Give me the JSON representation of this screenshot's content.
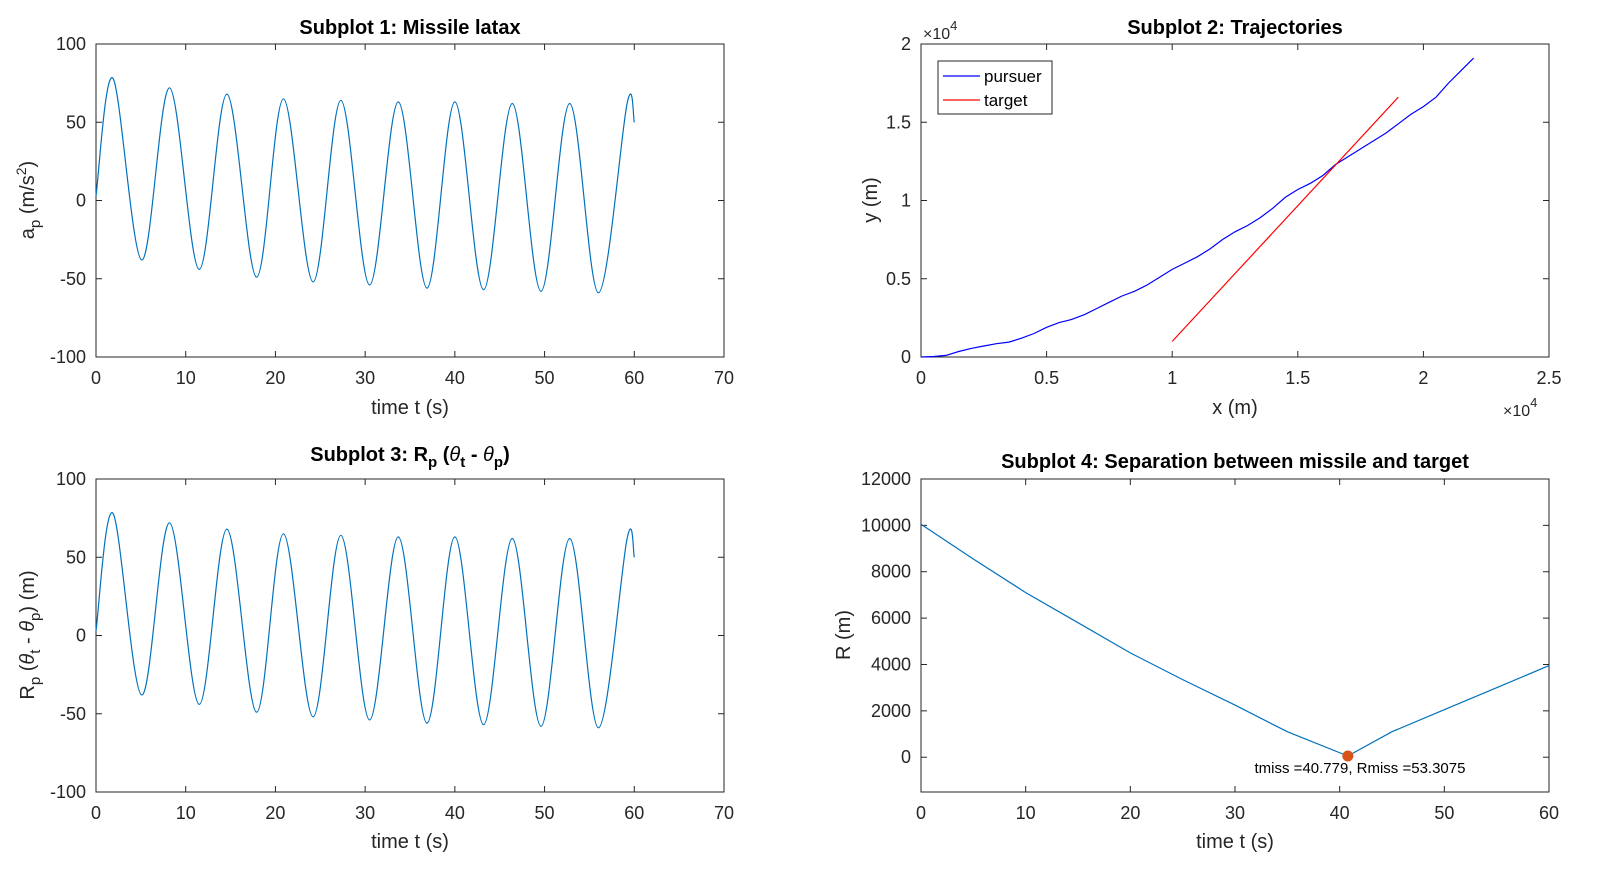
{
  "chart_data": [
    {
      "id": "p1",
      "type": "line",
      "title": "Subplot 1: Missile latax",
      "xlabel": "time t (s)",
      "ylabel_main": "a",
      "ylabel_sub": "p",
      "ylabel_rest": " (m/s",
      "ylabel_sup": "2",
      "ylabel_end": ")",
      "xlim": [
        0,
        70
      ],
      "ylim": [
        -100,
        100
      ],
      "xticks": [
        "0",
        "10",
        "20",
        "30",
        "40",
        "50",
        "60",
        "70"
      ],
      "yticks": [
        "-100",
        "-50",
        "0",
        "50",
        "100"
      ],
      "series": [
        {
          "color": "#0072BD",
          "x": [
            0,
            1.9,
            5.1,
            8.2,
            11.5,
            14.6,
            17.9,
            20.9,
            24.2,
            27.3,
            30.5,
            33.7,
            36.9,
            40.0,
            43.2,
            46.4,
            49.6,
            52.8,
            56.0,
            59.2,
            60.0
          ],
          "y": [
            3,
            78,
            -38,
            72,
            -44,
            68,
            -49,
            65,
            -52,
            64,
            -54,
            63,
            -56,
            63,
            -57,
            62,
            -58,
            62,
            -59,
            62,
            50
          ]
        }
      ]
    },
    {
      "id": "p2",
      "type": "line",
      "title": "Subplot 2: Trajectories",
      "xlabel": "x (m)",
      "ylabel": "y (m)",
      "xlim": [
        0,
        25000
      ],
      "ylim": [
        0,
        20000
      ],
      "xticks": [
        "0",
        "0.5",
        "1",
        "1.5",
        "2",
        "2.5"
      ],
      "yticks": [
        "0",
        "0.5",
        "1",
        "1.5",
        "2"
      ],
      "exponent_base": "×10",
      "exponent_power": "4",
      "legend_position": "top-left",
      "series": [
        {
          "name": "pursuer",
          "color": "#0000FF",
          "x": [
            0,
            500,
            1000,
            1500,
            2000,
            2500,
            3000,
            3500,
            4000,
            4500,
            5000,
            5500,
            6000,
            6500,
            7000,
            7500,
            8000,
            8500,
            9000,
            9500,
            10000,
            10500,
            11000,
            11500,
            12000,
            12500,
            13000,
            13500,
            14000,
            14500,
            15000,
            15500,
            16000,
            16500,
            17000,
            17500,
            18000,
            18500,
            19000,
            19500,
            20000,
            20500,
            21000,
            21500,
            22000
          ],
          "y": [
            0,
            30,
            100,
            350,
            550,
            700,
            850,
            950,
            1200,
            1500,
            1900,
            2200,
            2400,
            2700,
            3100,
            3500,
            3900,
            4200,
            4600,
            5100,
            5600,
            6000,
            6400,
            6900,
            7500,
            8000,
            8400,
            8900,
            9500,
            10200,
            10700,
            11100,
            11600,
            12300,
            12800,
            13300,
            13800,
            14300,
            14900,
            15500,
            16000,
            16600,
            17500,
            18300,
            19100
          ]
        },
        {
          "name": "target",
          "color": "#FF0000",
          "x": [
            10000,
            19000
          ],
          "y": [
            1000,
            16600
          ]
        }
      ]
    },
    {
      "id": "p3",
      "type": "line",
      "title_main": "Subplot 3: R",
      "title_sub1": "p",
      "title_mid": " (",
      "title_theta1": "θ",
      "title_sub2": "t",
      "title_minus": " - ",
      "title_theta2": "θ",
      "title_sub3": "p",
      "title_end": ")",
      "xlabel": "time t (s)",
      "ylabel_r": "R",
      "ylabel_sub1": "p",
      "ylabel_open": " (",
      "ylabel_theta1": "θ",
      "ylabel_sub2": "t",
      "ylabel_minus": " - ",
      "ylabel_theta2": "θ",
      "ylabel_sub3": "p",
      "ylabel_end": ") (m)",
      "xlim": [
        0,
        70
      ],
      "ylim": [
        -100,
        100
      ],
      "xticks": [
        "0",
        "10",
        "20",
        "30",
        "40",
        "50",
        "60",
        "70"
      ],
      "yticks": [
        "-100",
        "-50",
        "0",
        "50",
        "100"
      ],
      "series": [
        {
          "color": "#0072BD",
          "x": [
            0,
            1.9,
            5.1,
            8.2,
            11.5,
            14.6,
            17.9,
            20.9,
            24.2,
            27.3,
            30.5,
            33.7,
            36.9,
            40.0,
            43.2,
            46.4,
            49.6,
            52.8,
            56.0,
            59.2,
            60.0
          ],
          "y": [
            3,
            78,
            -38,
            72,
            -44,
            68,
            -49,
            65,
            -52,
            64,
            -54,
            63,
            -56,
            63,
            -57,
            62,
            -58,
            62,
            -59,
            62,
            50
          ]
        }
      ]
    },
    {
      "id": "p4",
      "type": "line",
      "title": "Subplot 4: Separation between missile and target",
      "xlabel": "time t (s)",
      "ylabel": "R (m)",
      "xlim": [
        0,
        60
      ],
      "ylim": [
        -1500,
        12000
      ],
      "xticks": [
        "0",
        "10",
        "20",
        "30",
        "40",
        "50",
        "60"
      ],
      "yticks": [
        "0",
        "2000",
        "4000",
        "6000",
        "8000",
        "10000",
        "12000"
      ],
      "series": [
        {
          "color": "#0072BD",
          "x": [
            0,
            5,
            10,
            15,
            20,
            25,
            30,
            35,
            40.779,
            45,
            50,
            55,
            60
          ],
          "y": [
            10050,
            8550,
            7100,
            5800,
            4500,
            3350,
            2250,
            1100,
            53.3,
            1100,
            2050,
            3000,
            3950
          ]
        }
      ],
      "marker": {
        "x": 40.779,
        "y": 53.3075,
        "color": "#D95319"
      },
      "annotation": "tmiss =40.779, Rmiss =53.3075"
    }
  ]
}
